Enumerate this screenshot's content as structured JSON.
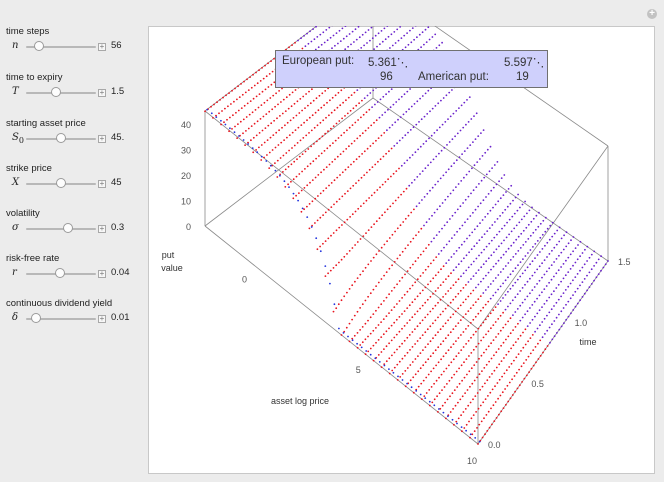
{
  "controls": [
    {
      "label": "time steps",
      "var": "n",
      "sub": "",
      "value": "56",
      "position": 0.18
    },
    {
      "label": "time to expiry",
      "var": "T",
      "sub": "",
      "value": "1.5",
      "position": 0.43
    },
    {
      "label": "starting asset price",
      "var": "S",
      "sub": "0",
      "value": "45.",
      "position": 0.5
    },
    {
      "label": "strike price",
      "var": "X",
      "sub": "",
      "value": "45",
      "position": 0.5
    },
    {
      "label": "volatility",
      "var": "σ",
      "sub": "",
      "value": "0.3",
      "position": 0.6
    },
    {
      "label": "risk-free rate",
      "var": "r",
      "sub": "",
      "value": "0.04",
      "position": 0.48
    },
    {
      "label": "continuous dividend yield",
      "var": "δ",
      "sub": "",
      "value": "0.01",
      "position": 0.14
    }
  ],
  "info": {
    "european_label": "European put:",
    "european_value": "5.361⋱",
    "american_prefix_value": "5.597⋱",
    "row2_left_value": "96",
    "american_label": "American put:",
    "american_value": "19"
  },
  "chart_data": {
    "type": "surface",
    "xlabel": "asset log price",
    "ylabel": "time",
    "zlabel_line1": "put",
    "zlabel_line2": "value",
    "x_ticks": [
      "0",
      "5",
      "10"
    ],
    "y_ticks": [
      "0.0",
      "0.5",
      "1.0",
      "1.5"
    ],
    "z_ticks": [
      "0",
      "10",
      "20",
      "30",
      "40"
    ],
    "x_range": [
      -2,
      10
    ],
    "y_range": [
      0,
      1.5
    ],
    "z_range": [
      0,
      45
    ],
    "strike": 45,
    "colors": {
      "american": "#e8141e",
      "european": "#2233dd"
    }
  }
}
